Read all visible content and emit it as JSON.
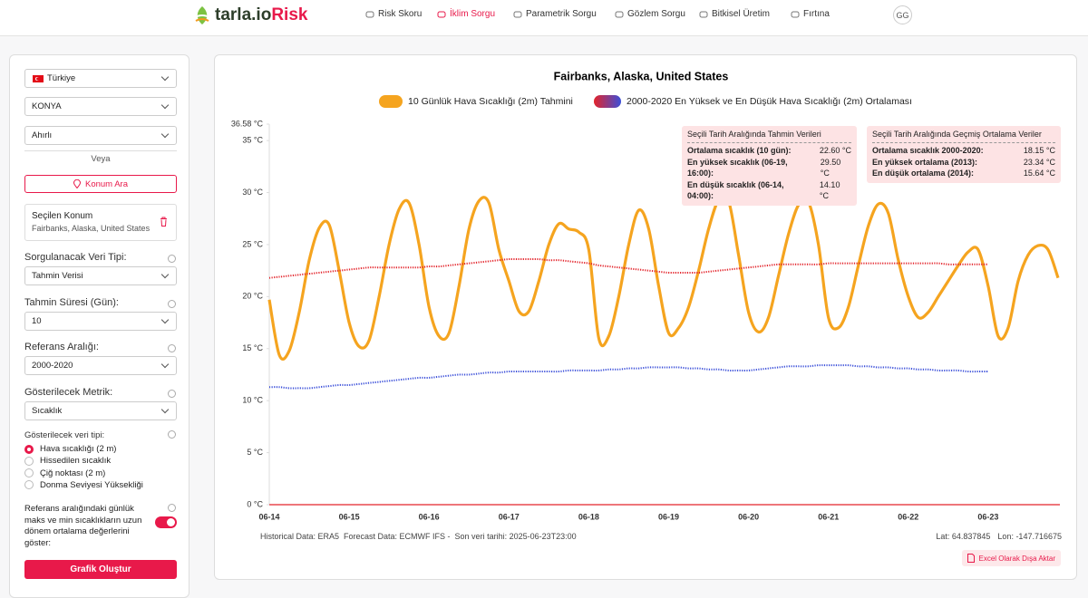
{
  "nav": {
    "logo": "tarla.io",
    "logo_accent": "Risk",
    "items": [
      "Risk Skoru",
      "İklim Sorgu",
      "Parametrik Sorgu",
      "Gözlem Sorgu",
      "Bitkisel Üretim",
      "Fırtına"
    ],
    "active": 1,
    "avatar": "GG"
  },
  "sidebar": {
    "country": "Türkiye",
    "province": "KONYA",
    "district": "Ahırlı",
    "or": "Veya",
    "search_button": "Konum Ara",
    "selected_title": "Seçilen Konum",
    "selected_value": "Fairbanks, Alaska, United States",
    "fields": [
      {
        "label": "Sorgulanacak Veri Tipi:",
        "value": "Tahmin Verisi"
      },
      {
        "label": "Tahmin Süresi (Gün):",
        "value": "10"
      },
      {
        "label": "Referans Aralığı:",
        "value": "2000-2020"
      },
      {
        "label": "Gösterilecek Metrik:",
        "value": "Sıcaklık"
      }
    ],
    "radio_label": "Gösterilecek veri tipi:",
    "radios": [
      "Hava sıcaklığı (2 m)",
      "Hissedilen sıcaklık",
      "Çiğ noktası (2 m)",
      "Donma Seviyesi Yüksekliği"
    ],
    "radio_selected": 0,
    "toggle_label": "Referans aralığındaki günlük maks ve min sıcaklıkların uzun dönem ortalama değerlerini göster:",
    "toggle_on": true,
    "submit": "Grafik Oluştur"
  },
  "chart_data": {
    "type": "line",
    "title": "Fairbanks, Alaska, United States",
    "categories": [
      "06-14",
      null,
      null,
      null,
      null,
      null,
      null,
      null,
      "06-15",
      null,
      null,
      null,
      null,
      null,
      null,
      null,
      "06-16",
      null,
      null,
      null,
      null,
      null,
      null,
      null,
      "06-17",
      null,
      null,
      null,
      null,
      null,
      null,
      null,
      "06-18",
      null,
      null,
      null,
      null,
      null,
      null,
      null,
      "06-19",
      null,
      null,
      null,
      null,
      null,
      null,
      null,
      "06-20",
      null,
      null,
      null,
      null,
      null,
      null,
      null,
      "06-21",
      null,
      null,
      null,
      null,
      null,
      null,
      null,
      "06-22",
      null,
      null,
      null,
      null,
      null,
      null,
      null,
      "06-23",
      null,
      null,
      null,
      null,
      null,
      null,
      null
    ],
    "series": [
      {
        "name": "10 Günlük Hava Sıcaklığı (2m) Tahmini",
        "color": "#f5a41f",
        "values": [
          19.7,
          14.4,
          14.8,
          18.5,
          23.5,
          26.6,
          26.9,
          22.5,
          17.5,
          15.2,
          15.8,
          20.0,
          25.0,
          28.4,
          29.0,
          25.0,
          19.0,
          16.2,
          16.5,
          21.0,
          26.5,
          29.2,
          29.0,
          24.5,
          21.5,
          18.6,
          18.6,
          21.5,
          25.0,
          27.0,
          26.5,
          26.2,
          24.5,
          16.0,
          16.2,
          20.0,
          25.0,
          28.3,
          26.5,
          21.0,
          16.5,
          17.0,
          19.0,
          22.5,
          26.5,
          29.3,
          29.2,
          24.0,
          18.5,
          16.6,
          18.0,
          22.0,
          26.0,
          28.8,
          29.1,
          25.0,
          18.0,
          17.0,
          19.0,
          23.0,
          26.8,
          28.9,
          28.0,
          23.5,
          20.0,
          18.0,
          18.5,
          20.0,
          21.5,
          23.0,
          24.3,
          24.5,
          21.0,
          16.2,
          17.0,
          21.5,
          24.0,
          24.9,
          24.5,
          21.8
        ]
      },
      {
        "name": "2000-2020 En Yüksek ve En Düşük Hava Sıcaklığı (2m) Ortalaması",
        "color": "#e3242b",
        "values": [
          21.8,
          21.9,
          22.0,
          22.1,
          22.2,
          22.3,
          22.4,
          22.5,
          22.6,
          22.7,
          22.8,
          22.8,
          22.8,
          22.8,
          22.8,
          22.8,
          22.9,
          22.9,
          23.0,
          23.1,
          23.2,
          23.3,
          23.4,
          23.5,
          23.6,
          23.6,
          23.6,
          23.6,
          23.5,
          23.5,
          23.4,
          23.3,
          23.2,
          23.0,
          22.9,
          22.8,
          22.7,
          22.6,
          22.5,
          22.4,
          22.3,
          22.3,
          22.3,
          22.3,
          22.4,
          22.5,
          22.6,
          22.7,
          22.8,
          22.9,
          23.0,
          23.1,
          23.1,
          23.1,
          23.1,
          23.1,
          23.2,
          23.2,
          23.2,
          23.2,
          23.2,
          23.2,
          23.2,
          23.2,
          23.2,
          23.2,
          23.2,
          23.2,
          23.1,
          23.1,
          23.1,
          23.1,
          23.1,
          null,
          null,
          null,
          null,
          null,
          null,
          null
        ]
      },
      {
        "color": "#3b4fd9",
        "values": [
          11.3,
          11.3,
          11.2,
          11.2,
          11.2,
          11.3,
          11.4,
          11.5,
          11.5,
          11.6,
          11.7,
          11.8,
          11.9,
          12.0,
          12.1,
          12.2,
          12.2,
          12.3,
          12.4,
          12.5,
          12.5,
          12.6,
          12.7,
          12.7,
          12.8,
          12.8,
          12.8,
          12.8,
          12.8,
          12.8,
          12.9,
          12.9,
          12.9,
          12.9,
          13.0,
          13.0,
          13.1,
          13.1,
          13.2,
          13.2,
          13.2,
          13.2,
          13.1,
          13.1,
          13.0,
          13.0,
          12.9,
          12.9,
          12.9,
          13.0,
          13.1,
          13.2,
          13.3,
          13.3,
          13.3,
          13.4,
          13.4,
          13.4,
          13.4,
          13.3,
          13.3,
          13.2,
          13.2,
          13.1,
          13.1,
          13.0,
          13.0,
          12.9,
          12.9,
          12.9,
          12.8,
          12.8,
          12.8,
          null,
          null,
          null,
          null,
          null,
          null,
          null
        ]
      }
    ],
    "ylim": [
      0,
      36.58
    ],
    "yticks": [
      {
        "value": 0,
        "label": "0 °C"
      },
      {
        "value": 5,
        "label": "5 °C"
      },
      {
        "value": 10,
        "label": "10 °C"
      },
      {
        "value": 15,
        "label": "15 °C"
      },
      {
        "value": 20,
        "label": "20 °C"
      },
      {
        "value": 25,
        "label": "25 °C"
      },
      {
        "value": 30,
        "label": "30 °C"
      },
      {
        "value": 35,
        "label": "35 °C"
      },
      {
        "value": 36.58,
        "label": "36.58 °C"
      }
    ],
    "baseline_color": "#e3242b"
  },
  "info_boxes": [
    {
      "title": "Seçili Tarih Aralığında Tahmin Verileri",
      "rows": [
        [
          "Ortalama sıcaklık (10 gün):",
          "22.60 °C"
        ],
        [
          "En yüksek sıcaklık (06-19, 16:00):",
          "29.50 °C"
        ],
        [
          "En düşük sıcaklık (06-14, 04:00):",
          "14.10 °C"
        ]
      ]
    },
    {
      "title": "Seçili Tarih Aralığında Geçmiş Ortalama Veriler",
      "rows": [
        [
          "Ortalama sıcaklık 2000-2020:",
          "18.15 °C"
        ],
        [
          "En yüksek ortalama (2013):",
          "23.34 °C"
        ],
        [
          "En düşük ortalama (2014):",
          "15.64 °C"
        ]
      ]
    }
  ],
  "footer": {
    "historical": "Historical Data: ERA5",
    "forecast": "Forecast Data: ECMWF IFS -",
    "last_date": "Son veri tarihi: 2025-06-23T23:00",
    "lat": "Lat: 64.837845",
    "lon": "Lon: -147.716675",
    "export": "Excel Olarak Dışa Aktar"
  }
}
